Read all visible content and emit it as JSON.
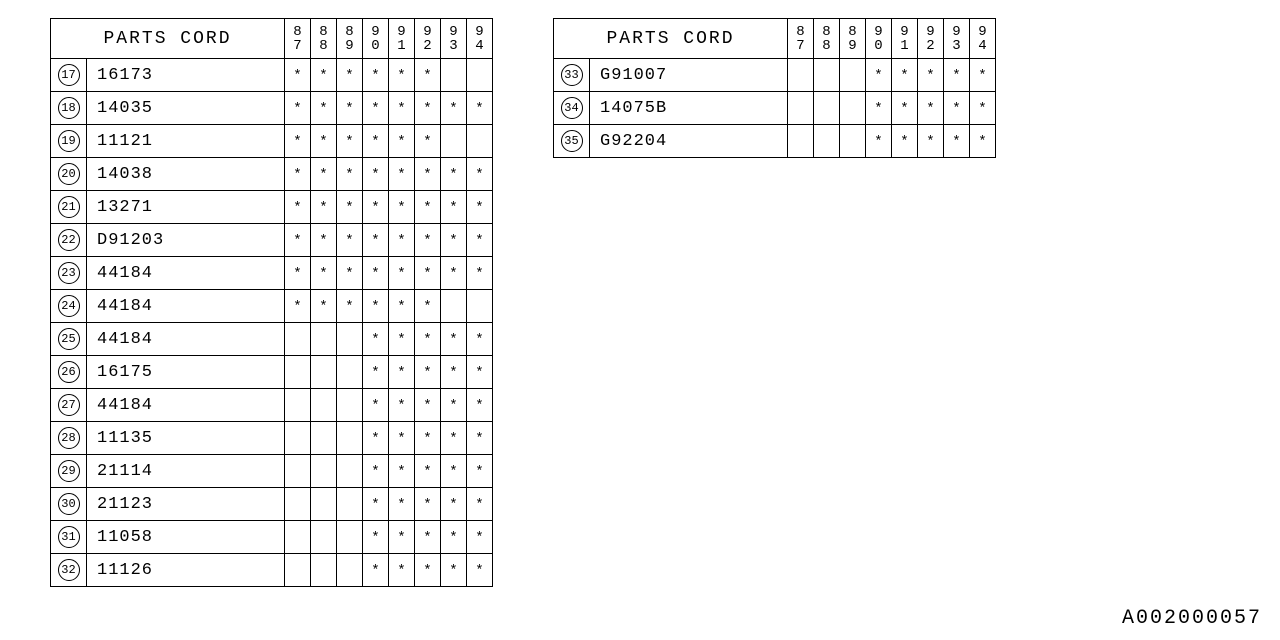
{
  "header_label": "PARTS CORD",
  "years": [
    "87",
    "88",
    "89",
    "90",
    "91",
    "92",
    "93",
    "94"
  ],
  "mark": "*",
  "footer_id": "A002000057",
  "left_rows": [
    {
      "idx": "17",
      "code": "16173",
      "y": [
        1,
        1,
        1,
        1,
        1,
        1,
        0,
        0
      ]
    },
    {
      "idx": "18",
      "code": "14035",
      "y": [
        1,
        1,
        1,
        1,
        1,
        1,
        1,
        1
      ]
    },
    {
      "idx": "19",
      "code": "11121",
      "y": [
        1,
        1,
        1,
        1,
        1,
        1,
        0,
        0
      ]
    },
    {
      "idx": "20",
      "code": "14038",
      "y": [
        1,
        1,
        1,
        1,
        1,
        1,
        1,
        1
      ]
    },
    {
      "idx": "21",
      "code": "13271",
      "y": [
        1,
        1,
        1,
        1,
        1,
        1,
        1,
        1
      ]
    },
    {
      "idx": "22",
      "code": "D91203",
      "y": [
        1,
        1,
        1,
        1,
        1,
        1,
        1,
        1
      ]
    },
    {
      "idx": "23",
      "code": "44184",
      "y": [
        1,
        1,
        1,
        1,
        1,
        1,
        1,
        1
      ]
    },
    {
      "idx": "24",
      "code": "44184",
      "y": [
        1,
        1,
        1,
        1,
        1,
        1,
        0,
        0
      ]
    },
    {
      "idx": "25",
      "code": "44184",
      "y": [
        0,
        0,
        0,
        1,
        1,
        1,
        1,
        1
      ]
    },
    {
      "idx": "26",
      "code": "16175",
      "y": [
        0,
        0,
        0,
        1,
        1,
        1,
        1,
        1
      ]
    },
    {
      "idx": "27",
      "code": "44184",
      "y": [
        0,
        0,
        0,
        1,
        1,
        1,
        1,
        1
      ]
    },
    {
      "idx": "28",
      "code": "11135",
      "y": [
        0,
        0,
        0,
        1,
        1,
        1,
        1,
        1
      ]
    },
    {
      "idx": "29",
      "code": "21114",
      "y": [
        0,
        0,
        0,
        1,
        1,
        1,
        1,
        1
      ]
    },
    {
      "idx": "30",
      "code": "21123",
      "y": [
        0,
        0,
        0,
        1,
        1,
        1,
        1,
        1
      ]
    },
    {
      "idx": "31",
      "code": "11058",
      "y": [
        0,
        0,
        0,
        1,
        1,
        1,
        1,
        1
      ]
    },
    {
      "idx": "32",
      "code": "11126",
      "y": [
        0,
        0,
        0,
        1,
        1,
        1,
        1,
        1
      ]
    }
  ],
  "right_rows": [
    {
      "idx": "33",
      "code": "G91007",
      "y": [
        0,
        0,
        0,
        1,
        1,
        1,
        1,
        1
      ]
    },
    {
      "idx": "34",
      "code": "14075B",
      "y": [
        0,
        0,
        0,
        1,
        1,
        1,
        1,
        1
      ]
    },
    {
      "idx": "35",
      "code": "G92204",
      "y": [
        0,
        0,
        0,
        1,
        1,
        1,
        1,
        1
      ]
    }
  ]
}
